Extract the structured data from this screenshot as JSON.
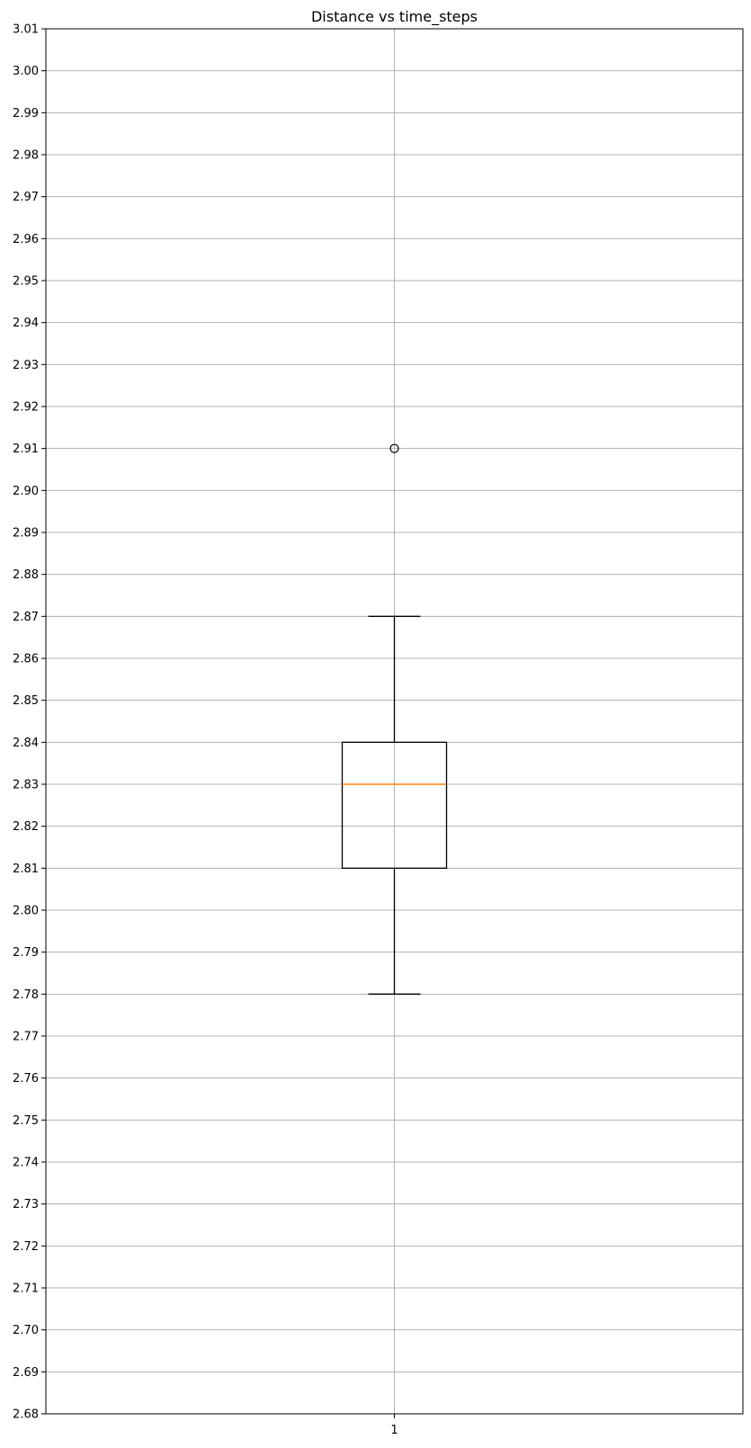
{
  "chart_data": {
    "type": "box",
    "title": "Distance vs time_steps",
    "xlabel": "",
    "ylabel": "",
    "categories": [
      "1"
    ],
    "ylim": [
      2.68,
      3.01
    ],
    "y_ticks": [
      "2.68",
      "2.69",
      "2.70",
      "2.71",
      "2.72",
      "2.73",
      "2.74",
      "2.75",
      "2.76",
      "2.77",
      "2.78",
      "2.79",
      "2.80",
      "2.81",
      "2.82",
      "2.83",
      "2.84",
      "2.85",
      "2.86",
      "2.87",
      "2.88",
      "2.89",
      "2.90",
      "2.91",
      "2.92",
      "2.93",
      "2.94",
      "2.95",
      "2.96",
      "2.97",
      "2.98",
      "2.99",
      "3.00",
      "3.01"
    ],
    "grid": true,
    "boxes": [
      {
        "category": "1",
        "whisker_low": 2.78,
        "q1": 2.81,
        "median": 2.83,
        "q3": 2.84,
        "whisker_high": 2.87,
        "outliers": [
          2.91
        ]
      }
    ],
    "colors": {
      "box": "#000000",
      "median": "#ff7f0e",
      "grid": "#b0b0b0",
      "outlier": "#000000"
    }
  }
}
